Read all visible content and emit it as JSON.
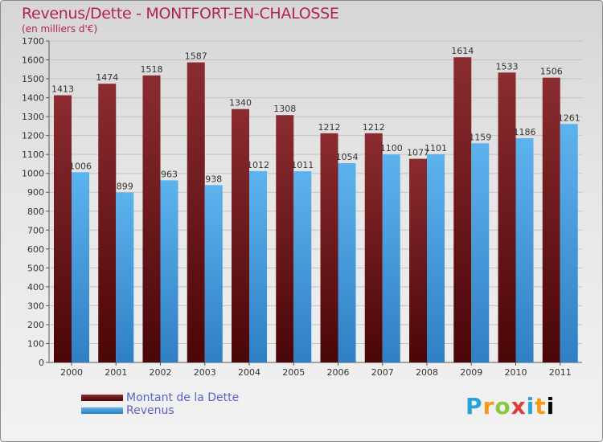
{
  "chart_data": {
    "type": "bar",
    "title": "Revenus/Dette - MONTFORT-EN-CHALOSSE",
    "subtitle": "(en milliers d'€)",
    "categories": [
      "2000",
      "2001",
      "2002",
      "2003",
      "2004",
      "2005",
      "2006",
      "2007",
      "2008",
      "2009",
      "2010",
      "2011"
    ],
    "series": [
      {
        "name": "Montant de la Dette",
        "color": "#7a1f22",
        "values": [
          1413,
          1474,
          1518,
          1587,
          1340,
          1308,
          1212,
          1212,
          1077,
          1614,
          1533,
          1506
        ]
      },
      {
        "name": "Revenus",
        "color": "#4aa3e6",
        "values": [
          1006,
          899,
          963,
          938,
          1012,
          1011,
          1054,
          1100,
          1101,
          1159,
          1186,
          1261
        ]
      }
    ],
    "ylim": [
      0,
      1700
    ],
    "yticks": [
      0,
      100,
      200,
      300,
      400,
      500,
      600,
      700,
      800,
      900,
      1000,
      1100,
      1200,
      1300,
      1400,
      1500,
      1600,
      1700
    ],
    "grid": true,
    "legend_position": "bottom-left"
  },
  "logo": {
    "letters": [
      "P",
      "r",
      "o",
      "x",
      "i",
      "t",
      "i"
    ]
  }
}
